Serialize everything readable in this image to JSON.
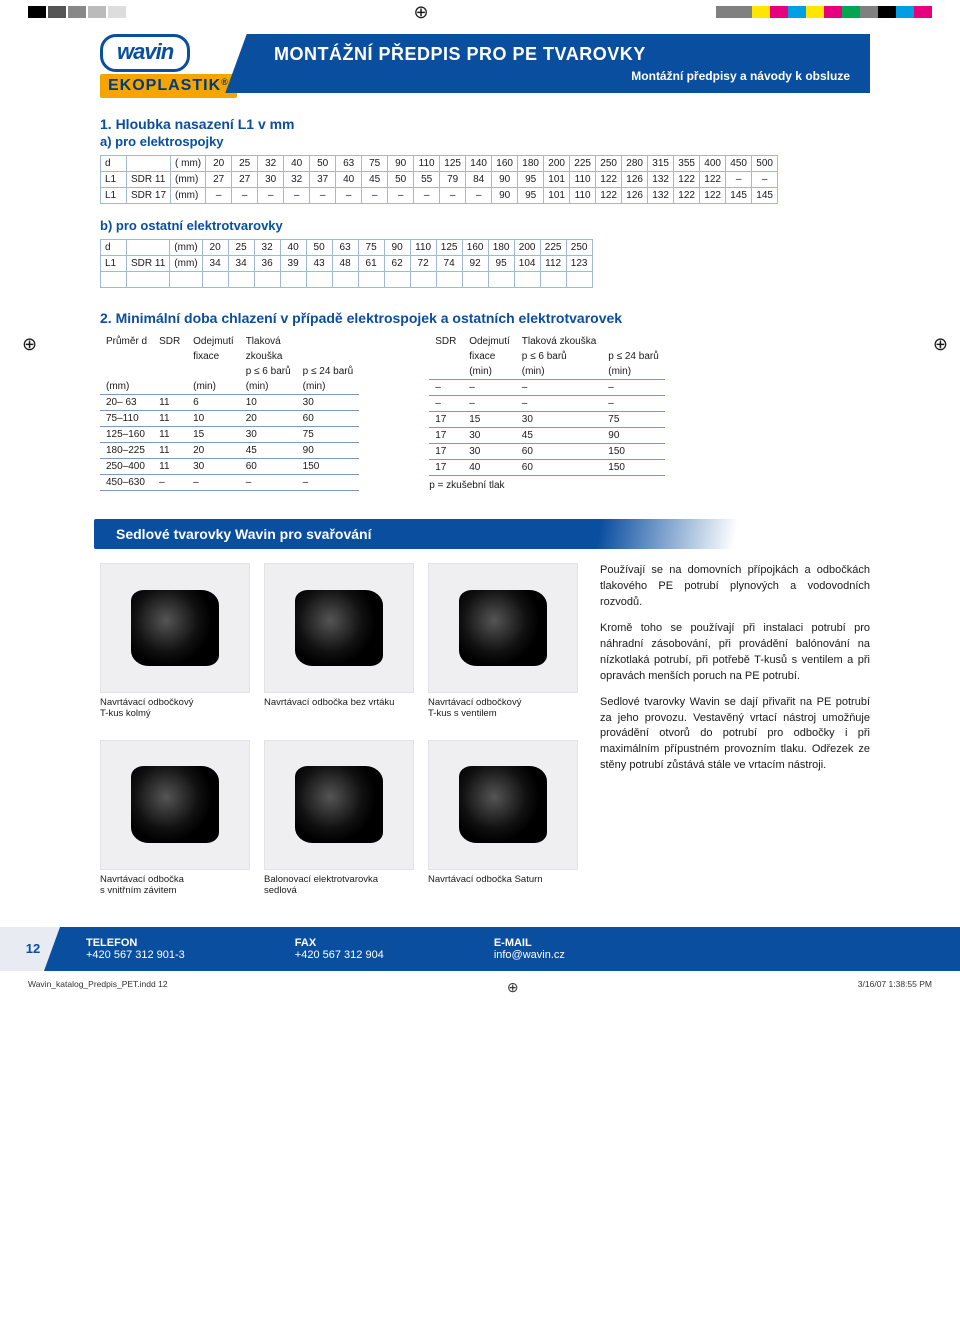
{
  "colors": {
    "brand_blue": "#0a4ea0",
    "brand_orange": "#f6a400",
    "table_border": "#9fb9d6",
    "page_bg": "#ffffff",
    "text": "#1a1a1a",
    "cmyk": [
      "#808080",
      "#808080",
      "#ffe600",
      "#e6007e",
      "#009fe3",
      "#ffe600",
      "#e6007e",
      "#00a651",
      "#808080",
      "#000000",
      "#009fe3",
      "#e6007e"
    ]
  },
  "logo": {
    "brand": "wavin",
    "sub": "EKOPLASTIK",
    "reg": "®"
  },
  "banner": {
    "title": "MONTÁŽNÍ PŘEDPIS PRO PE TVAROVKY",
    "subtitle": "Montážní předpisy a návody k obsluze"
  },
  "section1": {
    "title": "1. Hloubka nasazení L1 v mm",
    "sub_a": "a) pro elektrospojky",
    "sub_b": "b) pro ostatní elektrotvarovky",
    "table_a": {
      "head": [
        "d",
        "",
        "( mm)",
        "20",
        "25",
        "32",
        "40",
        "50",
        "63",
        "75",
        "90",
        "110",
        "125",
        "140",
        "160",
        "180",
        "200",
        "225",
        "250",
        "280",
        "315",
        "355",
        "400",
        "450",
        "500"
      ],
      "rows": [
        [
          "L1",
          "SDR 11",
          "(mm)",
          "27",
          "27",
          "30",
          "32",
          "37",
          "40",
          "45",
          "50",
          "55",
          "79",
          "84",
          "90",
          "95",
          "101",
          "110",
          "122",
          "126",
          "132",
          "122",
          "122",
          "–",
          "–"
        ],
        [
          "L1",
          "SDR 17",
          "(mm)",
          "–",
          "–",
          "–",
          "–",
          "–",
          "–",
          "–",
          "–",
          "–",
          "–",
          "–",
          "90",
          "95",
          "101",
          "110",
          "122",
          "126",
          "132",
          "122",
          "122",
          "145",
          "145"
        ]
      ]
    },
    "table_b": {
      "head": [
        "d",
        "",
        "(mm)",
        "20",
        "25",
        "32",
        "40",
        "50",
        "63",
        "75",
        "90",
        "110",
        "125",
        "160",
        "180",
        "200",
        "225",
        "250"
      ],
      "rows": [
        [
          "L1",
          "SDR 11",
          "(mm)",
          "34",
          "34",
          "36",
          "39",
          "43",
          "48",
          "61",
          "62",
          "72",
          "74",
          "92",
          "95",
          "104",
          "112",
          "123"
        ]
      ]
    }
  },
  "section2": {
    "title": "2. Minimální doba chlazení v případě elektrospojek a ostatních elektrotvarovek",
    "left": {
      "headers": [
        "Průměr d",
        "SDR",
        "Odejmutí",
        "Tlaková"
      ],
      "sub": [
        "",
        "",
        "fixace",
        "zkouška"
      ],
      "sub2": [
        "",
        "",
        "",
        "p ≤ 6 barů",
        "p ≤ 24 barů"
      ],
      "units": [
        "(mm)",
        "",
        "(min)",
        "(min)",
        "(min)"
      ],
      "rows": [
        [
          "20– 63",
          "11",
          "6",
          "10",
          "30"
        ],
        [
          "75–110",
          "11",
          "10",
          "20",
          "60"
        ],
        [
          "125–160",
          "11",
          "15",
          "30",
          "75"
        ],
        [
          "180–225",
          "11",
          "20",
          "45",
          "90"
        ],
        [
          "250–400",
          "11",
          "30",
          "60",
          "150"
        ],
        [
          "450–630",
          "–",
          "–",
          "–",
          "–"
        ]
      ]
    },
    "right": {
      "headers": [
        "SDR",
        "Odejmutí",
        "Tlaková zkouška",
        ""
      ],
      "sub": [
        "",
        "fixace",
        "p ≤ 6 barů",
        "p ≤ 24 barů"
      ],
      "units": [
        "",
        "(min)",
        "(min)",
        "(min)"
      ],
      "rows": [
        [
          "–",
          "–",
          "–",
          "–"
        ],
        [
          "–",
          "–",
          "–",
          "–"
        ],
        [
          "17",
          "15",
          "30",
          "75"
        ],
        [
          "17",
          "30",
          "45",
          "90"
        ],
        [
          "17",
          "30",
          "60",
          "150"
        ],
        [
          "17",
          "40",
          "60",
          "150"
        ]
      ],
      "note": "p = zkušební tlak"
    }
  },
  "saddle": {
    "heading": "Sedlové tvarovky Wavin pro svařování",
    "products_row1": [
      {
        "caption": "Navrtávací odbočkový\nT-kus kolmý"
      },
      {
        "caption": "Navrtávací odbočka bez vrtáku"
      },
      {
        "caption": "Navrtávací odbočkový\nT-kus s ventilem"
      }
    ],
    "products_row2": [
      {
        "caption": "Navrtávací odbočka\ns vnitřním závitem"
      },
      {
        "caption": "Balonovací elektrotvarovka\nsedlová"
      },
      {
        "caption": "Navrtávací odbočka Saturn"
      }
    ],
    "paragraphs": [
      "Používají se na domovních přípojkách a odbočkách tlakového PE potrubí plynových a vodovodních rozvodů.",
      "Kromě toho se používají při instalaci potrubí pro náhradní zásobování, při provádění balónování na nízkotlaká potrubí, při potřebě T-kusů s ventilem a při opravách menších poruch na PE potrubí.",
      "Sedlové tvarovky Wavin se dají přivařit na PE potrubí za jeho provozu. Vestavěný vrtací nástroj umožňuje provádění otvorů do potrubí pro odbočky i při maximálním přípustném provozním tlaku. Odřezek ze stěny potrubí zůstává stále ve vrtacím nástroji."
    ]
  },
  "footer": {
    "page": "12",
    "tel_label": "TELEFON",
    "tel": "+420 567 312 901-3",
    "fax_label": "FAX",
    "fax": "+420 567 312 904",
    "email_label": "E-MAIL",
    "email": "info@wavin.cz"
  },
  "meta": {
    "file": "Wavin_katalog_Predpis_PET.indd   12",
    "stamp": "3/16/07   1:38:55 PM"
  }
}
